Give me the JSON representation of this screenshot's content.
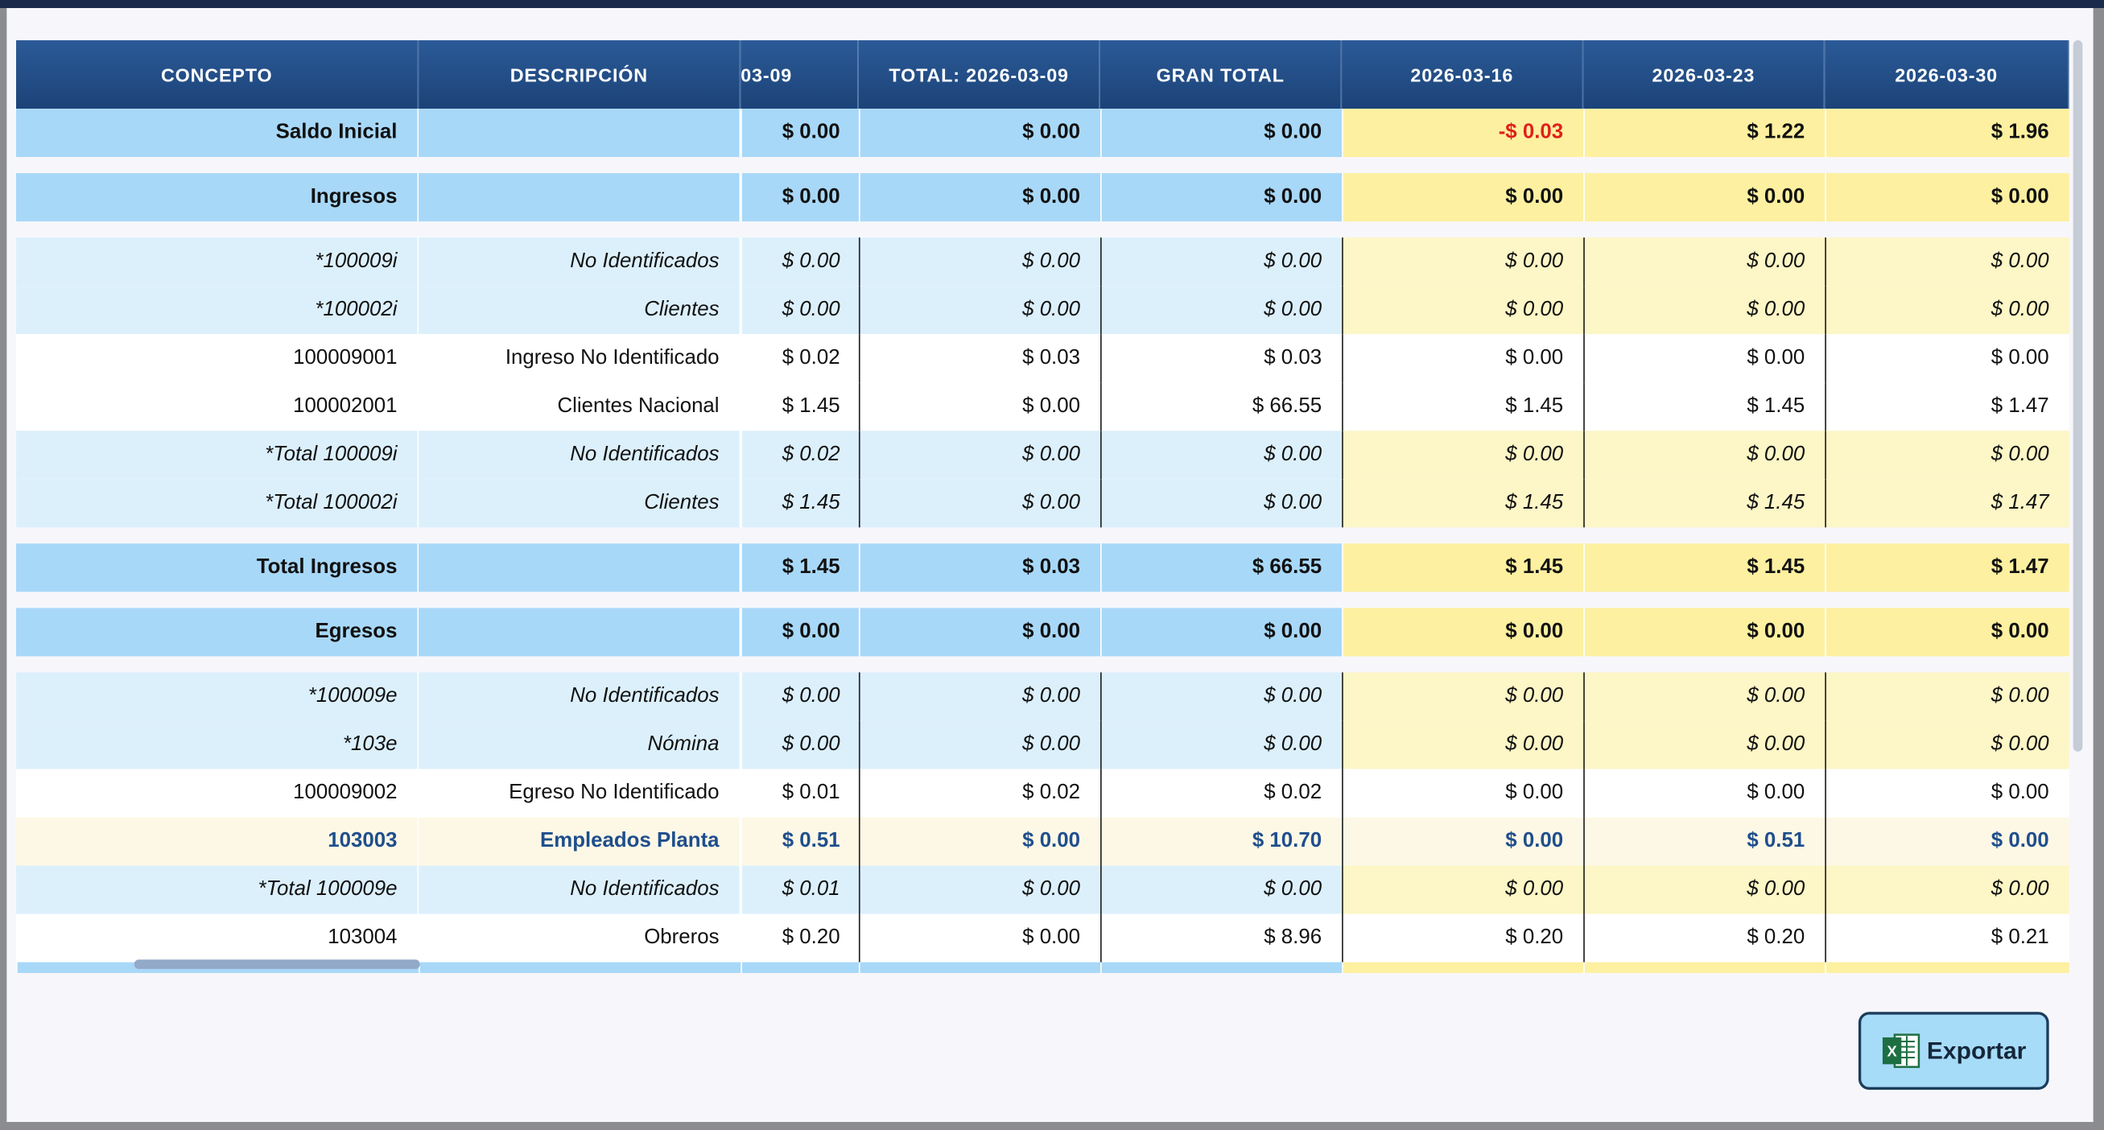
{
  "table": {
    "headers": [
      "CONCEPTO",
      "DESCRIPCIÓN",
      "03-09",
      "TOTAL: 2026-03-09",
      "GRAN TOTAL",
      "2026-03-16",
      "2026-03-23",
      "2026-03-30"
    ],
    "rows": [
      {
        "style": "section",
        "concepto": "Saldo Inicial",
        "values": [
          "$ 0.00",
          "$ 0.00",
          "$ 0.00",
          "-$ 0.03",
          "$ 1.22",
          "$ 1.96"
        ]
      },
      {
        "style": "section",
        "concepto": "Ingresos",
        "values": [
          "$ 0.00",
          "$ 0.00",
          "$ 0.00",
          "$ 0.00",
          "$ 0.00",
          "$ 0.00"
        ]
      },
      {
        "style": "group",
        "concepto": "*100009i",
        "descripcion": "No Identificados",
        "values": [
          "$ 0.00",
          "$ 0.00",
          "$ 0.00",
          "$ 0.00",
          "$ 0.00",
          "$ 0.00"
        ]
      },
      {
        "style": "group",
        "concepto": "*100002i",
        "descripcion": "Clientes",
        "values": [
          "$ 0.00",
          "$ 0.00",
          "$ 0.00",
          "$ 0.00",
          "$ 0.00",
          "$ 0.00"
        ]
      },
      {
        "style": "detail",
        "concepto": "100009001",
        "descripcion": "Ingreso No Identificado",
        "values": [
          "$ 0.02",
          "$ 0.03",
          "$ 0.03",
          "$ 0.00",
          "$ 0.00",
          "$ 0.00"
        ]
      },
      {
        "style": "detail",
        "concepto": "100002001",
        "descripcion": "Clientes Nacional",
        "values": [
          "$ 1.45",
          "$ 0.00",
          "$ 66.55",
          "$ 1.45",
          "$ 1.45",
          "$ 1.47"
        ]
      },
      {
        "style": "group",
        "concepto": "*Total 100009i",
        "descripcion": "No Identificados",
        "values": [
          "$ 0.02",
          "$ 0.00",
          "$ 0.00",
          "$ 0.00",
          "$ 0.00",
          "$ 0.00"
        ]
      },
      {
        "style": "group",
        "concepto": "*Total 100002i",
        "descripcion": "Clientes",
        "values": [
          "$ 1.45",
          "$ 0.00",
          "$ 0.00",
          "$ 1.45",
          "$ 1.45",
          "$ 1.47"
        ]
      },
      {
        "style": "section",
        "concepto": "Total Ingresos",
        "values": [
          "$ 1.45",
          "$ 0.03",
          "$ 66.55",
          "$ 1.45",
          "$ 1.45",
          "$ 1.47"
        ]
      },
      {
        "style": "section",
        "concepto": "Egresos",
        "values": [
          "$ 0.00",
          "$ 0.00",
          "$ 0.00",
          "$ 0.00",
          "$ 0.00",
          "$ 0.00"
        ]
      },
      {
        "style": "group",
        "concepto": "*100009e",
        "descripcion": "No Identificados",
        "values": [
          "$ 0.00",
          "$ 0.00",
          "$ 0.00",
          "$ 0.00",
          "$ 0.00",
          "$ 0.00"
        ]
      },
      {
        "style": "group",
        "concepto": "*103e",
        "descripcion": "Nómina",
        "values": [
          "$ 0.00",
          "$ 0.00",
          "$ 0.00",
          "$ 0.00",
          "$ 0.00",
          "$ 0.00"
        ]
      },
      {
        "style": "detail",
        "concepto": "100009002",
        "descripcion": "Egreso No Identificado",
        "values": [
          "$ 0.01",
          "$ 0.02",
          "$ 0.02",
          "$ 0.00",
          "$ 0.00",
          "$ 0.00"
        ]
      },
      {
        "style": "highlight",
        "concepto": "103003",
        "descripcion": "Empleados Planta",
        "values": [
          "$ 0.51",
          "$ 0.00",
          "$ 10.70",
          "$ 0.00",
          "$ 0.51",
          "$ 0.00"
        ]
      },
      {
        "style": "group",
        "concepto": "*Total 100009e",
        "descripcion": "No Identificados",
        "values": [
          "$ 0.01",
          "$ 0.00",
          "$ 0.00",
          "$ 0.00",
          "$ 0.00",
          "$ 0.00"
        ]
      },
      {
        "style": "detail",
        "concepto": "103004",
        "descripcion": "Obreros",
        "values": [
          "$ 0.20",
          "$ 0.00",
          "$ 8.96",
          "$ 0.20",
          "$ 0.20",
          "$ 0.21"
        ]
      }
    ]
  },
  "button": "Exportar"
}
